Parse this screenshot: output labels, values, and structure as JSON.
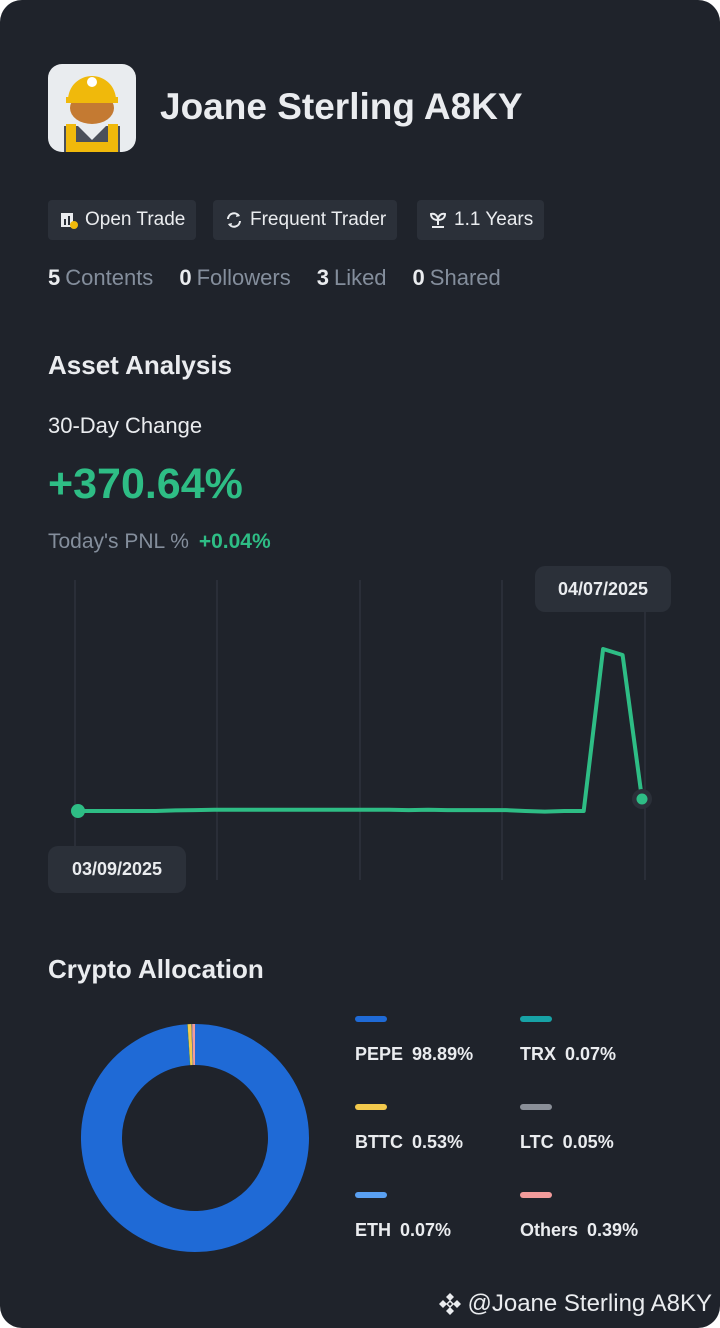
{
  "header": {
    "name": "Joane Sterling A8KY"
  },
  "badges": [
    "Open Trade",
    "Frequent Trader",
    "1.1 Years"
  ],
  "stats": [
    {
      "value": 5,
      "label": "Contents"
    },
    {
      "value": 0,
      "label": "Followers"
    },
    {
      "value": 3,
      "label": "Liked"
    },
    {
      "value": 0,
      "label": "Shared"
    }
  ],
  "asset_analysis": {
    "title": "Asset Analysis",
    "change_label": "30-Day Change",
    "change_value": "+370.64%",
    "pnl_label": "Today's PNL %",
    "pnl_value": "+0.04%"
  },
  "chart_data": [
    {
      "type": "line",
      "start_date": "03/09/2025",
      "end_date": "04/07/2025",
      "color": "#2ebd85",
      "ylim": [
        0,
        100
      ],
      "values": [
        23,
        23,
        23,
        23,
        23,
        23.2,
        23.3,
        23.4,
        23.4,
        23.4,
        23.4,
        23.4,
        23.4,
        23.4,
        23.4,
        23.4,
        23.4,
        23.3,
        23.4,
        23.3,
        23.3,
        23.3,
        23.3,
        23,
        22.8,
        23,
        23,
        77,
        75,
        27
      ]
    },
    {
      "type": "pie",
      "title": "Crypto Allocation",
      "categories": [
        "PEPE",
        "TRX",
        "BTTC",
        "LTC",
        "ETH",
        "Others"
      ],
      "values": [
        98.89,
        0.07,
        0.53,
        0.05,
        0.07,
        0.39
      ],
      "value_labels": [
        "98.89%",
        "0.07%",
        "0.53%",
        "0.05%",
        "0.07%",
        "0.39%"
      ],
      "colors": [
        "#1f6ad6",
        "#17a2a6",
        "#f2c94c",
        "#8a8f98",
        "#5aa0f2",
        "#f29b9b"
      ]
    }
  ],
  "footer": {
    "handle": "@Joane Sterling A8KY"
  }
}
